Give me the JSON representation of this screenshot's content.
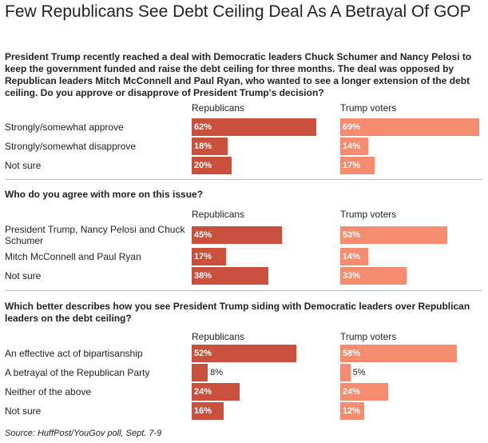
{
  "title": "Few Republicans See Debt Ceiling Deal As A Betrayal Of GOP",
  "column_headers": [
    "Republicans",
    "Trump voters"
  ],
  "source": "Source: HuffPost/YouGov poll, Sept. 7-9",
  "colors": {
    "republicans": "#c9503c",
    "trump_voters": "#f58b6f"
  },
  "chart_data": {
    "type": "bar",
    "orientation": "horizontal",
    "series_names": [
      "Republicans",
      "Trump voters"
    ],
    "value_unit": "%",
    "xlim": [
      0,
      100
    ],
    "panels": [
      {
        "question": "President Trump recently reached a deal with Democratic leaders Chuck Schumer and Nancy Pelosi to keep the government funded and raise the debt ceiling for three months. The deal was opposed by Republican leaders Mitch McConnell and Paul Ryan, who wanted to see a longer extension of the debt ceiling. Do you approve or disapprove of President Trump's decision?",
        "rows": [
          {
            "label": "Strongly/somewhat approve",
            "republicans": 62,
            "trump_voters": 69
          },
          {
            "label": "Strongly/somewhat disapprove",
            "republicans": 18,
            "trump_voters": 14
          },
          {
            "label": "Not sure",
            "republicans": 20,
            "trump_voters": 17
          }
        ]
      },
      {
        "question": "Who do you agree with more on this issue?",
        "rows": [
          {
            "label": "President Trump, Nancy Pelosi and Chuck Schumer",
            "republicans": 45,
            "trump_voters": 53
          },
          {
            "label": "Mitch McConnell and Paul Ryan",
            "republicans": 17,
            "trump_voters": 14
          },
          {
            "label": "Not sure",
            "republicans": 38,
            "trump_voters": 33
          }
        ]
      },
      {
        "question": "Which better describes how you see President Trump siding with Democratic leaders over Republican leaders on the debt ceiling?",
        "rows": [
          {
            "label": "An effective act of bipartisanship",
            "republicans": 52,
            "trump_voters": 58
          },
          {
            "label": "A betrayal of the Republican Party",
            "republicans": 8,
            "trump_voters": 5
          },
          {
            "label": "Neither of the above",
            "republicans": 24,
            "trump_voters": 24
          },
          {
            "label": "Not sure",
            "republicans": 16,
            "trump_voters": 12
          }
        ]
      }
    ]
  }
}
